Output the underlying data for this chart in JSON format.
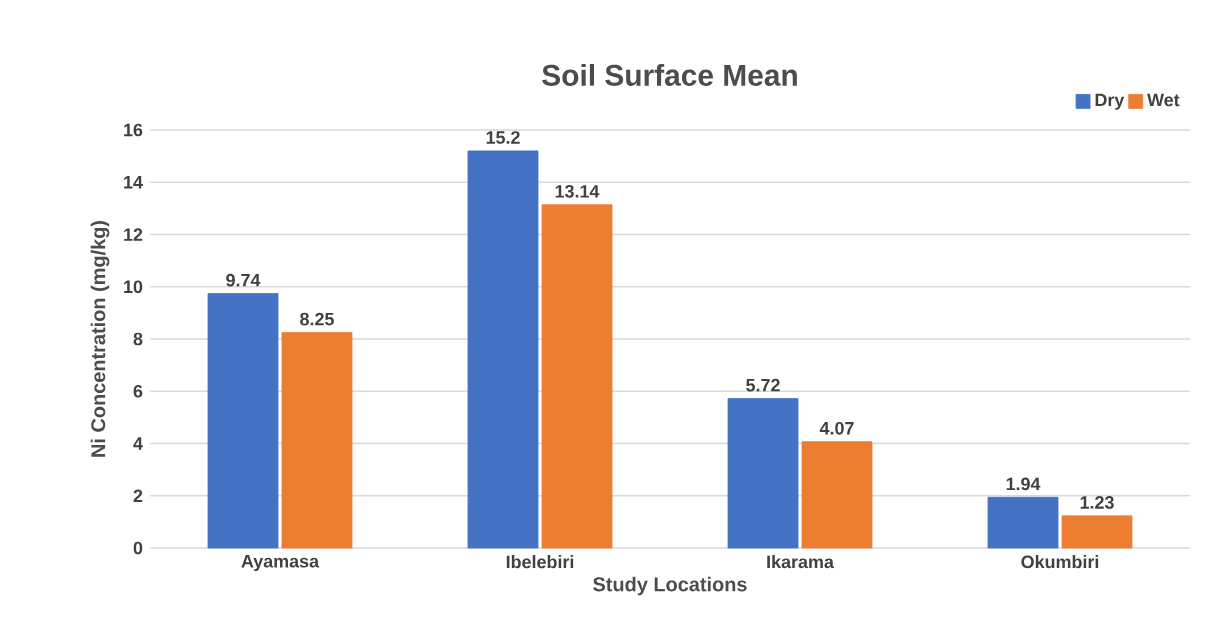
{
  "chart_data": {
    "type": "bar",
    "title": "Soil Surface Mean",
    "xlabel": "Study Locations",
    "ylabel": "Ni Concentration (mg/kg)",
    "categories": [
      "Ayamasa",
      "Ibelebiri",
      "Ikarama",
      "Okumbiri"
    ],
    "series": [
      {
        "name": "Dry",
        "color": "#4472c4",
        "values": [
          9.74,
          15.2,
          5.72,
          1.94
        ]
      },
      {
        "name": "Wet",
        "color": "#ed7d31",
        "values": [
          8.25,
          13.14,
          4.07,
          1.23
        ]
      }
    ],
    "ylim": [
      0,
      16
    ],
    "yticks": [
      0,
      2,
      4,
      6,
      8,
      10,
      12,
      14,
      16
    ],
    "grid": "y",
    "legend": "top right",
    "data_labels": true
  }
}
